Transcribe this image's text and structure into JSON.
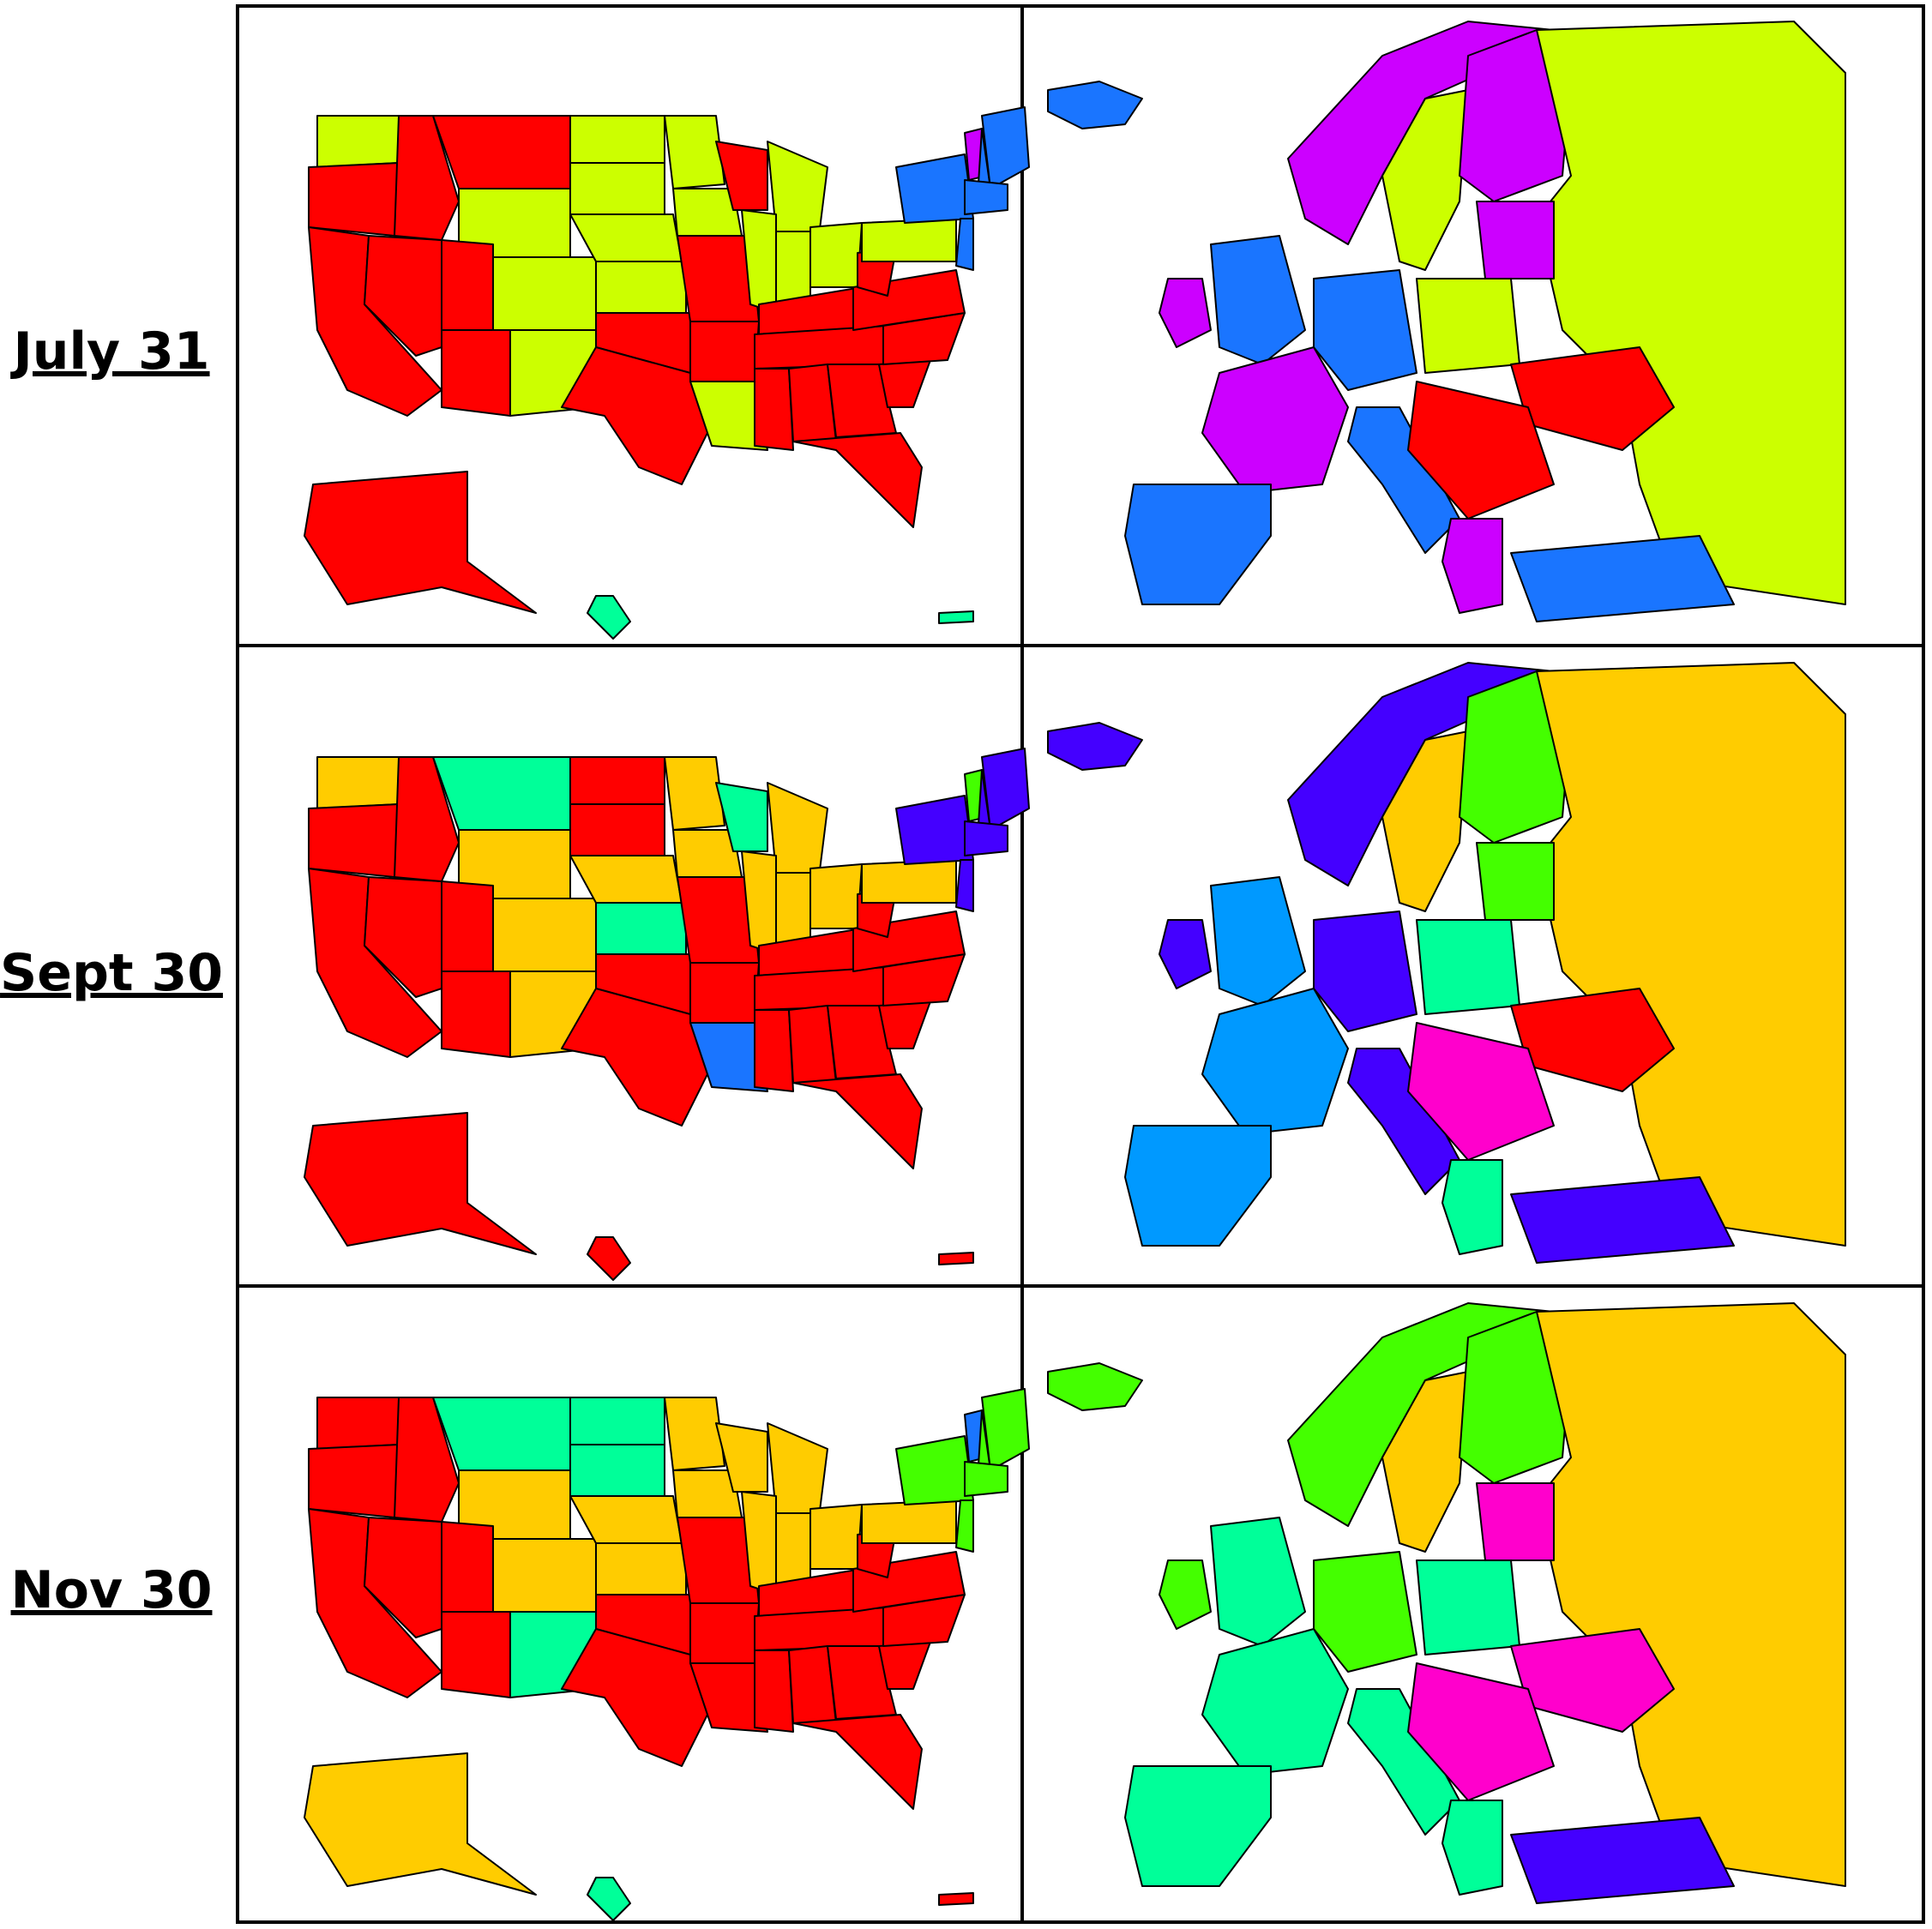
{
  "rows": [
    {
      "label": "July 31",
      "us": {
        "default": "#ccff00",
        "base": "#ff0000",
        "regions": {
          "wa": "#ccff00",
          "ca": "#ff0000",
          "mt": "#ff0000",
          "nd": "#ccff00",
          "ne": "#ccff00",
          "ks": "#ccff00",
          "co": "#ccff00",
          "nm": "#ccff00",
          "ok": "#ff0000",
          "tx": "#ff0000",
          "wi": "#ff0000",
          "mi": "#ccff00",
          "la": "#ccff00",
          "se": "#ff0000",
          "ne_states": "#1a75ff",
          "vt": "#cc00ff",
          "ak": "#ff0000",
          "hi": "#00ff99",
          "pr": "#00ff99"
        },
        "colors": {
          "red": "#ff0000",
          "yellow": "#ccff00",
          "blue": "#1a75ff",
          "purple": "#cc00ff",
          "teal": "#00ff99"
        }
      },
      "eu": {
        "regions": {
          "iceland": "#1a75ff",
          "norway": "#cc00ff",
          "sweden": "#ccff00",
          "finland": "#cc00ff",
          "russia": "#ccff00",
          "uk": "#1a75ff",
          "ireland": "#cc00ff",
          "france": "#cc00ff",
          "spain": "#1a75ff",
          "germany": "#1a75ff",
          "poland": "#ccff00",
          "ukraine": "#ff0000",
          "italy": "#1a75ff",
          "turkey": "#1a75ff",
          "balkans": "#ff0000",
          "baltics": "#cc00ff",
          "greece": "#cc00ff"
        }
      }
    },
    {
      "label": "Sept 30",
      "us": {
        "regions": {
          "wa": "#ffcc00",
          "ca": "#ff0000",
          "mt": "#00ff99",
          "nd": "#ff0000",
          "ne": "#ffcc00",
          "ks": "#00ff99",
          "co": "#ffcc00",
          "nm": "#ffcc00",
          "ok": "#ff0000",
          "tx": "#ff0000",
          "wi": "#00ff99",
          "mi": "#ffcc00",
          "la": "#1a75ff",
          "se": "#ff0000",
          "ne_states": "#4400ff",
          "vt": "#44ff00",
          "ak": "#ff0000",
          "hi": "#ff0000",
          "pr": "#ff0000"
        }
      },
      "eu": {
        "regions": {
          "iceland": "#4400ff",
          "norway": "#4400ff",
          "sweden": "#ffcc00",
          "finland": "#44ff00",
          "russia": "#ffcc00",
          "uk": "#0099ff",
          "ireland": "#4400ff",
          "france": "#0099ff",
          "spain": "#0099ff",
          "germany": "#4400ff",
          "poland": "#00ff99",
          "ukraine": "#ff0000",
          "italy": "#4400ff",
          "turkey": "#4400ff",
          "balkans": "#ff00cc",
          "baltics": "#44ff00",
          "greece": "#00ff99"
        }
      }
    },
    {
      "label": "Nov 30",
      "us": {
        "regions": {
          "wa": "#ff0000",
          "ca": "#ff0000",
          "mt": "#00ff99",
          "nd": "#00ff99",
          "ne": "#ffcc00",
          "ks": "#ffcc00",
          "co": "#ffcc00",
          "nm": "#00ff99",
          "ok": "#ff0000",
          "tx": "#ff0000",
          "wi": "#ffcc00",
          "mi": "#ffcc00",
          "la": "#ff0000",
          "se": "#ff0000",
          "ne_states": "#44ff00",
          "vt": "#1a75ff",
          "ak": "#ffcc00",
          "hi": "#00ff99",
          "pr": "#ff0000"
        }
      },
      "eu": {
        "regions": {
          "iceland": "#44ff00",
          "norway": "#44ff00",
          "sweden": "#ffcc00",
          "finland": "#44ff00",
          "russia": "#ffcc00",
          "uk": "#00ff99",
          "ireland": "#44ff00",
          "france": "#00ff99",
          "spain": "#00ff99",
          "germany": "#44ff00",
          "poland": "#00ff99",
          "ukraine": "#ff00cc",
          "italy": "#00ff99",
          "turkey": "#4400ff",
          "balkans": "#ff00cc",
          "baltics": "#ff00cc",
          "greece": "#00ff99"
        }
      }
    }
  ]
}
